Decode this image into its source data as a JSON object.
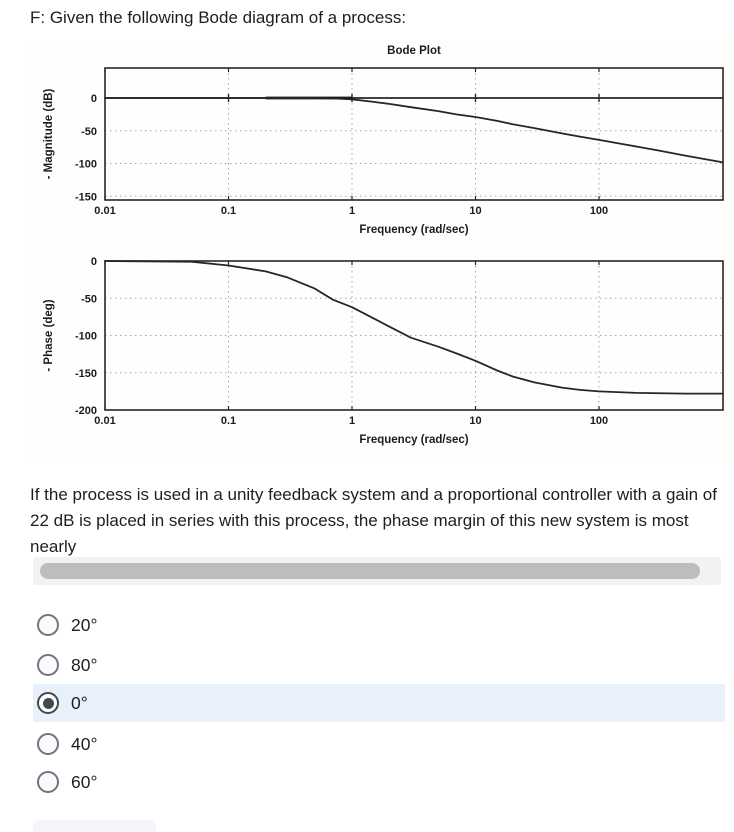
{
  "page": {
    "title": "F: Given the following Bode diagram of a process:"
  },
  "question": {
    "text": "If the process is used in a unity feedback system and a proportional controller with a gain of 22 dB is placed in series with this process, the phase margin of this new system is most nearly"
  },
  "options": [
    {
      "label": "20°",
      "selected": false
    },
    {
      "label": "80°",
      "selected": false
    },
    {
      "label": "0°",
      "selected": true
    },
    {
      "label": "40°",
      "selected": false
    },
    {
      "label": "60°",
      "selected": false
    }
  ],
  "colors": {
    "highlight_row": "#e8f0fa",
    "radio_border": "#70757a",
    "radio_selected": "#44484c",
    "scroll_track": "#f2f2f2",
    "scroll_thumb": "#bdbdbd",
    "plot_ink": "#262626",
    "plot_grid": "#a6a6a6",
    "text": "#1e1e1e"
  },
  "chart_data": [
    {
      "type": "line",
      "title": "Bode Plot",
      "xlabel": "Frequency (rad/sec)",
      "ylabel": "- Magnitude (dB)",
      "x_scale": "log",
      "xlim": [
        0.01,
        1000
      ],
      "ylim": [
        -160,
        45
      ],
      "xticks": [
        0.01,
        0.1,
        1,
        10,
        100
      ],
      "xtick_labels": [
        "0.01",
        "0.1",
        "1",
        "10",
        "100"
      ],
      "yticks": [
        0,
        -50,
        -100,
        -150
      ],
      "ytick_labels": [
        "0",
        "-50",
        "-100",
        "-150"
      ],
      "grid": true,
      "legend": "none",
      "series": [
        {
          "name": "magnitude",
          "x": [
            0.01,
            0.1,
            0.2,
            0.3,
            0.5,
            0.8,
            1,
            1.5,
            2,
            3,
            5,
            7,
            10,
            15,
            20,
            30,
            50,
            70,
            100,
            150,
            200,
            300,
            500,
            700,
            1000
          ],
          "y": [
            0,
            0,
            0,
            0,
            0,
            -1,
            -2,
            -6,
            -9,
            -14,
            -20,
            -25,
            -29,
            -35,
            -40,
            -46,
            -54,
            -59,
            -64,
            -70,
            -74,
            -80,
            -88,
            -93,
            -98
          ]
        }
      ]
    },
    {
      "type": "line",
      "title": "",
      "xlabel": "Frequency (rad/sec)",
      "ylabel": "- Phase (deg)",
      "x_scale": "log",
      "xlim": [
        0.01,
        1000
      ],
      "ylim": [
        -200,
        0
      ],
      "xticks": [
        0.01,
        0.1,
        1,
        10,
        100
      ],
      "xtick_labels": [
        "0.01",
        "0.1",
        "1",
        "10",
        "100"
      ],
      "yticks": [
        0,
        -50,
        -100,
        -150,
        -200
      ],
      "ytick_labels": [
        "0",
        "-50",
        "-100",
        "-150",
        "-200"
      ],
      "grid": true,
      "legend": "none",
      "series": [
        {
          "name": "phase",
          "x": [
            0.01,
            0.05,
            0.1,
            0.2,
            0.3,
            0.5,
            0.7,
            1,
            1.5,
            2,
            3,
            5,
            7,
            10,
            15,
            20,
            30,
            50,
            70,
            100,
            200,
            500,
            1000
          ],
          "y": [
            0,
            -1,
            -6,
            -14,
            -22,
            -37,
            -52,
            -62,
            -77,
            -88,
            -103,
            -115,
            -124,
            -134,
            -147,
            -155,
            -163,
            -170,
            -173,
            -175,
            -177,
            -178,
            -178
          ]
        }
      ]
    }
  ]
}
